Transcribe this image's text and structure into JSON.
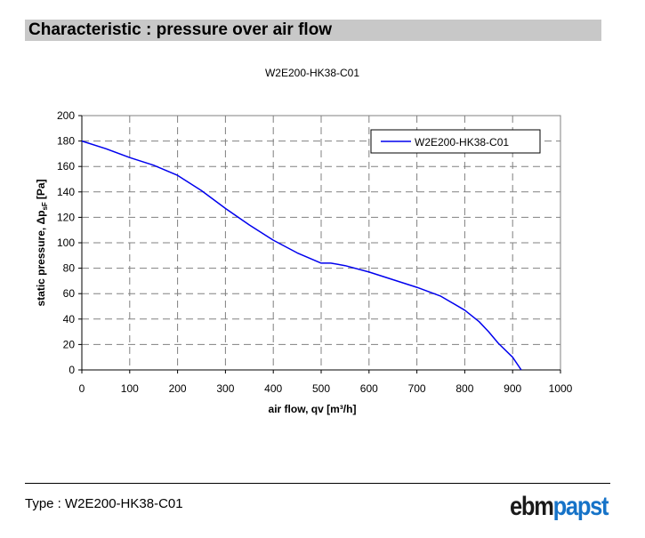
{
  "header": {
    "title": "Characteristic : pressure over air flow"
  },
  "footer": {
    "type_label": "Type : W2E200-HK38-C01",
    "brand_part1": "ebm",
    "brand_part2": "papst"
  },
  "colors": {
    "series": "#0000ee",
    "header_bg": "#c8c8c8",
    "brand_blue": "#1673c8"
  },
  "chart_data": {
    "type": "line",
    "title": "W2E200-HK38-C01",
    "xlabel": "air flow, qv [m³/h]",
    "ylabel": "static pressure, Δp",
    "ylabel_sub": "sF",
    "ylabel_unit": "[Pa]",
    "xlim": [
      0,
      1000
    ],
    "ylim": [
      0,
      200
    ],
    "x_ticks": [
      "0",
      "100",
      "200",
      "300",
      "400",
      "500",
      "600",
      "700",
      "800",
      "900",
      "1000"
    ],
    "y_ticks": [
      "0",
      "20",
      "40",
      "60",
      "80",
      "100",
      "120",
      "140",
      "160",
      "180",
      "200"
    ],
    "grid": true,
    "legend_position": "top-right",
    "series": [
      {
        "name": "W2E200-HK38-C01",
        "x": [
          0,
          50,
          100,
          150,
          200,
          250,
          300,
          350,
          400,
          450,
          500,
          520,
          550,
          600,
          650,
          700,
          750,
          800,
          830,
          850,
          870,
          900,
          918
        ],
        "y": [
          180,
          174,
          167,
          161,
          153,
          141,
          127,
          114,
          102,
          92,
          84,
          84,
          82,
          77,
          71,
          65,
          58,
          47,
          38,
          30,
          21,
          10,
          0
        ]
      }
    ]
  }
}
